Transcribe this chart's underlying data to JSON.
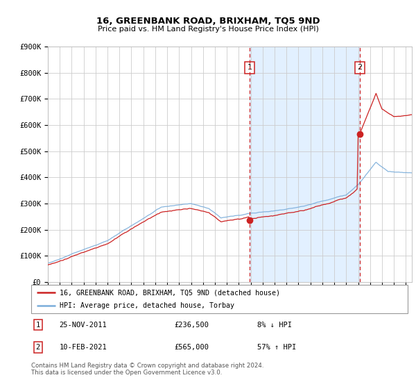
{
  "title": "16, GREENBANK ROAD, BRIXHAM, TQ5 9ND",
  "subtitle": "Price paid vs. HM Land Registry's House Price Index (HPI)",
  "ylim": [
    0,
    900000
  ],
  "yticks": [
    0,
    100000,
    200000,
    300000,
    400000,
    500000,
    600000,
    700000,
    800000,
    900000
  ],
  "ytick_labels": [
    "£0",
    "£100K",
    "£200K",
    "£300K",
    "£400K",
    "£500K",
    "£600K",
    "£700K",
    "£800K",
    "£900K"
  ],
  "year_start": 1995,
  "year_end": 2025,
  "hpi_color": "#7aadda",
  "price_color": "#cc2222",
  "bg_shading_color": "#ddeeff",
  "plot_bg": "#ffffff",
  "grid_color": "#cccccc",
  "sale1_year": 2011.9,
  "sale1_price": 236500,
  "sale1_label": "1",
  "sale2_year": 2021.12,
  "sale2_price": 565000,
  "sale2_label": "2",
  "legend_line1": "16, GREENBANK ROAD, BRIXHAM, TQ5 9ND (detached house)",
  "legend_line2": "HPI: Average price, detached house, Torbay",
  "note1_num": "1",
  "note1_date": "25-NOV-2011",
  "note1_price": "£236,500",
  "note1_hpi": "8% ↓ HPI",
  "note2_num": "2",
  "note2_date": "10-FEB-2021",
  "note2_price": "£565,000",
  "note2_hpi": "57% ↑ HPI",
  "footer": "Contains HM Land Registry data © Crown copyright and database right 2024.\nThis data is licensed under the Open Government Licence v3.0."
}
